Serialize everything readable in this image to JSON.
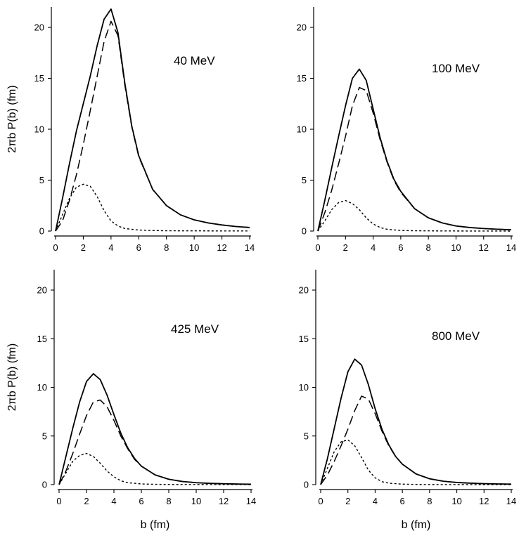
{
  "chart_data": [
    {
      "type": "line",
      "energy_label": "40 MeV",
      "xlabel": "",
      "ylabel": "2πb P(b) (fm)",
      "xlim": [
        0,
        14
      ],
      "ylim": [
        0,
        22
      ],
      "xticks": [
        0,
        2,
        4,
        6,
        8,
        10,
        12,
        14
      ],
      "yticks": [
        0,
        5,
        10,
        15,
        20
      ],
      "series": [
        {
          "style": "solid",
          "x": [
            0,
            0.5,
            1,
            1.5,
            2,
            2.5,
            3,
            3.5,
            4,
            4.5,
            5,
            5.5,
            6,
            7,
            8,
            9,
            10,
            11,
            12,
            13,
            14
          ],
          "y": [
            0,
            3.2,
            6.6,
            9.8,
            12.5,
            15.2,
            18.2,
            20.8,
            21.8,
            19.5,
            14.5,
            10.3,
            7.4,
            4.1,
            2.5,
            1.6,
            1.1,
            0.8,
            0.6,
            0.45,
            0.35
          ]
        },
        {
          "style": "dashed",
          "x": [
            0,
            0.5,
            1,
            1.5,
            2,
            2.5,
            3,
            3.5,
            4,
            4.5,
            5,
            5.5,
            6,
            7,
            8,
            9,
            10,
            11,
            12,
            13,
            14
          ],
          "y": [
            0,
            1.0,
            3.0,
            5.5,
            8.5,
            11.8,
            15.2,
            18.6,
            20.6,
            19.2,
            14.3,
            10.2,
            7.3,
            4.1,
            2.5,
            1.6,
            1.1,
            0.8,
            0.6,
            0.45,
            0.35
          ]
        },
        {
          "style": "dotted",
          "x": [
            0,
            0.5,
            1,
            1.5,
            2,
            2.5,
            3,
            3.5,
            4,
            4.5,
            5,
            6,
            7,
            8,
            10,
            14
          ],
          "y": [
            0,
            1.6,
            3.2,
            4.3,
            4.6,
            4.4,
            3.4,
            2.0,
            1.0,
            0.5,
            0.25,
            0.1,
            0.05,
            0.03,
            0.02,
            0.01
          ]
        }
      ]
    },
    {
      "type": "line",
      "energy_label": "100 MeV",
      "xlabel": "",
      "ylabel": "",
      "xlim": [
        0,
        14
      ],
      "ylim": [
        0,
        22
      ],
      "xticks": [
        0,
        2,
        4,
        6,
        8,
        10,
        12,
        14
      ],
      "yticks": [
        0,
        5,
        10,
        15,
        20
      ],
      "series": [
        {
          "style": "solid",
          "x": [
            0,
            0.5,
            1,
            1.5,
            2,
            2.5,
            3,
            3.5,
            4,
            4.5,
            5,
            5.5,
            6,
            7,
            8,
            9,
            10,
            11,
            12,
            13,
            14
          ],
          "y": [
            0,
            3.0,
            6.2,
            9.3,
            12.3,
            15.0,
            15.9,
            14.8,
            12.0,
            9.2,
            6.9,
            5.1,
            3.9,
            2.2,
            1.3,
            0.8,
            0.5,
            0.35,
            0.25,
            0.18,
            0.13
          ]
        },
        {
          "style": "dashed",
          "x": [
            0,
            0.5,
            1,
            1.5,
            2,
            2.5,
            3,
            3.5,
            4,
            4.5,
            5,
            5.5,
            6,
            7,
            8,
            9,
            10,
            11,
            12,
            13,
            14
          ],
          "y": [
            0,
            1.8,
            4.0,
            6.6,
            9.3,
            12.3,
            14.1,
            13.8,
            11.6,
            9.0,
            6.8,
            5.0,
            3.8,
            2.2,
            1.3,
            0.8,
            0.5,
            0.35,
            0.25,
            0.18,
            0.13
          ]
        },
        {
          "style": "dotted",
          "x": [
            0,
            0.5,
            1,
            1.5,
            2,
            2.5,
            3,
            3.5,
            4,
            4.5,
            5,
            6,
            7,
            8,
            10,
            14
          ],
          "y": [
            0,
            1.0,
            2.1,
            2.8,
            3.0,
            2.7,
            2.1,
            1.3,
            0.7,
            0.35,
            0.18,
            0.06,
            0.03,
            0.02,
            0.01,
            0.0
          ]
        }
      ]
    },
    {
      "type": "line",
      "energy_label": "425 MeV",
      "xlabel": "b (fm)",
      "ylabel": "2πb P(b) (fm)",
      "xlim": [
        0,
        14
      ],
      "ylim": [
        0,
        22
      ],
      "xticks": [
        0,
        2,
        4,
        6,
        8,
        10,
        12,
        14
      ],
      "yticks": [
        0,
        5,
        10,
        15,
        20
      ],
      "series": [
        {
          "style": "solid",
          "x": [
            0,
            0.5,
            1,
            1.5,
            2,
            2.5,
            3,
            3.5,
            4,
            4.5,
            5,
            5.5,
            6,
            7,
            8,
            9,
            10,
            11,
            12,
            13,
            14
          ],
          "y": [
            0,
            2.9,
            5.8,
            8.5,
            10.6,
            11.4,
            10.8,
            9.2,
            7.2,
            5.3,
            3.8,
            2.7,
            1.9,
            1.0,
            0.55,
            0.32,
            0.2,
            0.13,
            0.09,
            0.06,
            0.04
          ]
        },
        {
          "style": "dashed",
          "x": [
            0,
            0.5,
            1,
            1.5,
            2,
            2.5,
            3,
            3.5,
            4,
            4.5,
            5,
            5.5,
            6,
            7,
            8,
            9,
            10,
            11,
            12,
            13,
            14
          ],
          "y": [
            0,
            1.4,
            3.2,
            5.2,
            7.1,
            8.5,
            8.7,
            8.0,
            6.6,
            5.0,
            3.7,
            2.6,
            1.9,
            1.0,
            0.55,
            0.32,
            0.2,
            0.13,
            0.09,
            0.06,
            0.04
          ]
        },
        {
          "style": "dotted",
          "x": [
            0,
            0.5,
            1,
            1.5,
            2,
            2.5,
            3,
            3.5,
            4,
            4.5,
            5,
            6,
            7,
            8,
            10,
            14
          ],
          "y": [
            0,
            1.2,
            2.4,
            3.0,
            3.2,
            2.9,
            2.2,
            1.4,
            0.8,
            0.4,
            0.2,
            0.07,
            0.03,
            0.02,
            0.01,
            0.0
          ]
        }
      ]
    },
    {
      "type": "line",
      "energy_label": "800 MeV",
      "xlabel": "b (fm)",
      "ylabel": "",
      "xlim": [
        0,
        14
      ],
      "ylim": [
        0,
        22
      ],
      "xticks": [
        0,
        2,
        4,
        6,
        8,
        10,
        12,
        14
      ],
      "yticks": [
        0,
        5,
        10,
        15,
        20
      ],
      "series": [
        {
          "style": "solid",
          "x": [
            0,
            0.5,
            1,
            1.5,
            2,
            2.5,
            3,
            3.5,
            4,
            4.5,
            5,
            5.5,
            6,
            7,
            8,
            9,
            10,
            11,
            12,
            13,
            14
          ],
          "y": [
            0,
            2.7,
            5.8,
            8.9,
            11.6,
            12.9,
            12.3,
            10.3,
            7.8,
            5.7,
            4.1,
            2.9,
            2.1,
            1.1,
            0.6,
            0.35,
            0.22,
            0.15,
            0.1,
            0.07,
            0.05
          ]
        },
        {
          "style": "dashed",
          "x": [
            0,
            0.5,
            1,
            1.5,
            2,
            2.5,
            3,
            3.5,
            4,
            4.5,
            5,
            5.5,
            6,
            7,
            8,
            9,
            10,
            11,
            12,
            13,
            14
          ],
          "y": [
            0,
            1.0,
            2.4,
            4.0,
            5.7,
            7.6,
            9.1,
            8.8,
            7.3,
            5.5,
            4.0,
            2.9,
            2.1,
            1.1,
            0.6,
            0.35,
            0.22,
            0.15,
            0.1,
            0.07,
            0.05
          ]
        },
        {
          "style": "dotted",
          "x": [
            0,
            0.5,
            1,
            1.5,
            2,
            2.5,
            3,
            3.5,
            4,
            4.5,
            5,
            6,
            7,
            8,
            10,
            14
          ],
          "y": [
            0,
            1.7,
            3.4,
            4.4,
            4.6,
            4.0,
            2.8,
            1.5,
            0.7,
            0.3,
            0.15,
            0.05,
            0.02,
            0.01,
            0.0,
            0.0
          ]
        }
      ]
    }
  ]
}
